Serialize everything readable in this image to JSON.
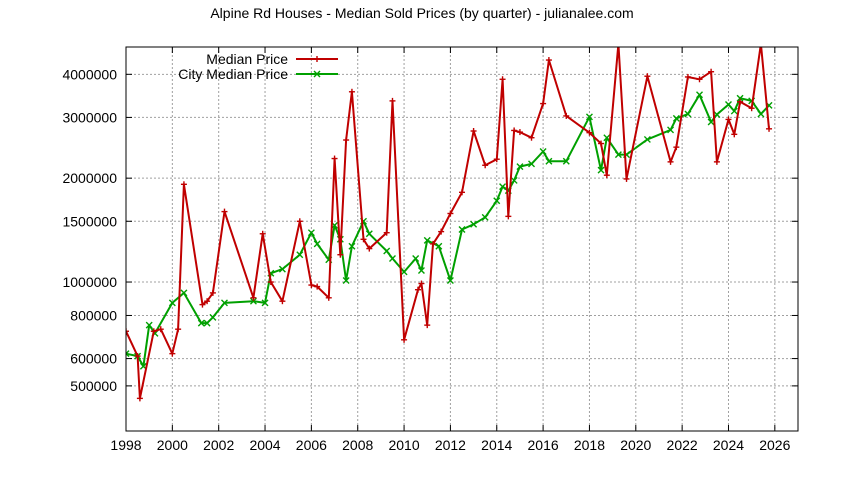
{
  "chart_data": {
    "type": "line",
    "title": "Alpine Rd Houses - Median Sold Prices (by quarter) - julianalee.com",
    "xlabel": "",
    "ylabel": "",
    "xlim": [
      1998,
      2027
    ],
    "ylim": [
      370000,
      4800000
    ],
    "yscale": "log",
    "grid": true,
    "legend_position": "top-left",
    "x_ticks": [
      "1998",
      "2000",
      "2002",
      "2004",
      "2006",
      "2008",
      "2010",
      "2012",
      "2014",
      "2016",
      "2018",
      "2020",
      "2022",
      "2024",
      "2026"
    ],
    "y_ticks": [
      "500000",
      "600000",
      "800000",
      "1000000",
      "1500000",
      "2000000",
      "3000000",
      "4000000"
    ],
    "series": [
      {
        "name": "Median Price",
        "color": "#c00000",
        "marker": "plus",
        "points": [
          [
            1998.0,
            720000
          ],
          [
            1998.5,
            610000
          ],
          [
            1998.6,
            460000
          ],
          [
            1999.2,
            720000
          ],
          [
            1999.5,
            730000
          ],
          [
            2000.0,
            620000
          ],
          [
            2000.25,
            730000
          ],
          [
            2000.5,
            1920000
          ],
          [
            2001.3,
            860000
          ],
          [
            2001.5,
            880000
          ],
          [
            2001.75,
            930000
          ],
          [
            2002.25,
            1600000
          ],
          [
            2003.5,
            900000
          ],
          [
            2003.9,
            1380000
          ],
          [
            2004.25,
            1000000
          ],
          [
            2004.75,
            880000
          ],
          [
            2005.5,
            1500000
          ],
          [
            2006.0,
            980000
          ],
          [
            2006.25,
            970000
          ],
          [
            2006.75,
            900000
          ],
          [
            2007.0,
            2280000
          ],
          [
            2007.25,
            1200000
          ],
          [
            2007.5,
            2580000
          ],
          [
            2007.75,
            3560000
          ],
          [
            2008.25,
            1330000
          ],
          [
            2008.5,
            1250000
          ],
          [
            2009.25,
            1390000
          ],
          [
            2009.5,
            3350000
          ],
          [
            2010.0,
            680000
          ],
          [
            2010.6,
            950000
          ],
          [
            2010.75,
            990000
          ],
          [
            2011.0,
            750000
          ],
          [
            2011.25,
            1290000
          ],
          [
            2011.6,
            1400000
          ],
          [
            2012.0,
            1580000
          ],
          [
            2012.5,
            1820000
          ],
          [
            2013.0,
            2740000
          ],
          [
            2013.5,
            2180000
          ],
          [
            2014.0,
            2270000
          ],
          [
            2014.25,
            3870000
          ],
          [
            2014.5,
            1550000
          ],
          [
            2014.75,
            2750000
          ],
          [
            2015.0,
            2720000
          ],
          [
            2015.5,
            2620000
          ],
          [
            2016.0,
            3290000
          ],
          [
            2016.25,
            4400000
          ],
          [
            2017.0,
            3030000
          ],
          [
            2018.0,
            2710000
          ],
          [
            2018.5,
            2520000
          ],
          [
            2018.75,
            2040000
          ],
          [
            2019.25,
            4900000
          ],
          [
            2019.6,
            1990000
          ],
          [
            2020.5,
            3950000
          ],
          [
            2021.5,
            2230000
          ],
          [
            2021.75,
            2460000
          ],
          [
            2022.25,
            3930000
          ],
          [
            2022.75,
            3870000
          ],
          [
            2023.25,
            4070000
          ],
          [
            2023.5,
            2230000
          ],
          [
            2024.0,
            2960000
          ],
          [
            2024.25,
            2680000
          ],
          [
            2024.5,
            3330000
          ],
          [
            2025.0,
            3190000
          ],
          [
            2025.4,
            4900000
          ],
          [
            2025.75,
            2780000
          ]
        ]
      },
      {
        "name": "City Median Price",
        "color": "#00a000",
        "marker": "x",
        "points": [
          [
            1998.0,
            620000
          ],
          [
            1998.5,
            610000
          ],
          [
            1998.75,
            570000
          ],
          [
            1999.0,
            750000
          ],
          [
            1999.25,
            710000
          ],
          [
            2000.0,
            870000
          ],
          [
            2000.5,
            930000
          ],
          [
            2001.25,
            760000
          ],
          [
            2001.5,
            760000
          ],
          [
            2001.75,
            790000
          ],
          [
            2002.25,
            870000
          ],
          [
            2003.5,
            880000
          ],
          [
            2004.0,
            870000
          ],
          [
            2004.25,
            1060000
          ],
          [
            2004.75,
            1090000
          ],
          [
            2005.5,
            1200000
          ],
          [
            2006.0,
            1390000
          ],
          [
            2006.25,
            1290000
          ],
          [
            2006.75,
            1160000
          ],
          [
            2007.0,
            1460000
          ],
          [
            2007.25,
            1330000
          ],
          [
            2007.5,
            1010000
          ],
          [
            2007.75,
            1270000
          ],
          [
            2008.25,
            1500000
          ],
          [
            2008.5,
            1380000
          ],
          [
            2009.25,
            1230000
          ],
          [
            2009.5,
            1170000
          ],
          [
            2010.0,
            1070000
          ],
          [
            2010.5,
            1170000
          ],
          [
            2010.75,
            1080000
          ],
          [
            2011.0,
            1320000
          ],
          [
            2011.5,
            1270000
          ],
          [
            2012.0,
            1010000
          ],
          [
            2012.5,
            1420000
          ],
          [
            2013.0,
            1470000
          ],
          [
            2013.5,
            1540000
          ],
          [
            2014.0,
            1720000
          ],
          [
            2014.25,
            1890000
          ],
          [
            2014.5,
            1840000
          ],
          [
            2014.75,
            1970000
          ],
          [
            2015.0,
            2160000
          ],
          [
            2015.5,
            2200000
          ],
          [
            2016.0,
            2390000
          ],
          [
            2016.25,
            2240000
          ],
          [
            2017.0,
            2240000
          ],
          [
            2018.0,
            3010000
          ],
          [
            2018.5,
            2110000
          ],
          [
            2018.75,
            2620000
          ],
          [
            2019.25,
            2340000
          ],
          [
            2019.6,
            2340000
          ],
          [
            2020.5,
            2590000
          ],
          [
            2021.5,
            2760000
          ],
          [
            2021.75,
            2980000
          ],
          [
            2022.25,
            3070000
          ],
          [
            2022.75,
            3490000
          ],
          [
            2023.25,
            2910000
          ],
          [
            2023.5,
            3060000
          ],
          [
            2024.0,
            3270000
          ],
          [
            2024.25,
            3130000
          ],
          [
            2024.5,
            3410000
          ],
          [
            2025.0,
            3350000
          ],
          [
            2025.4,
            3070000
          ],
          [
            2025.75,
            3250000
          ]
        ]
      }
    ]
  }
}
